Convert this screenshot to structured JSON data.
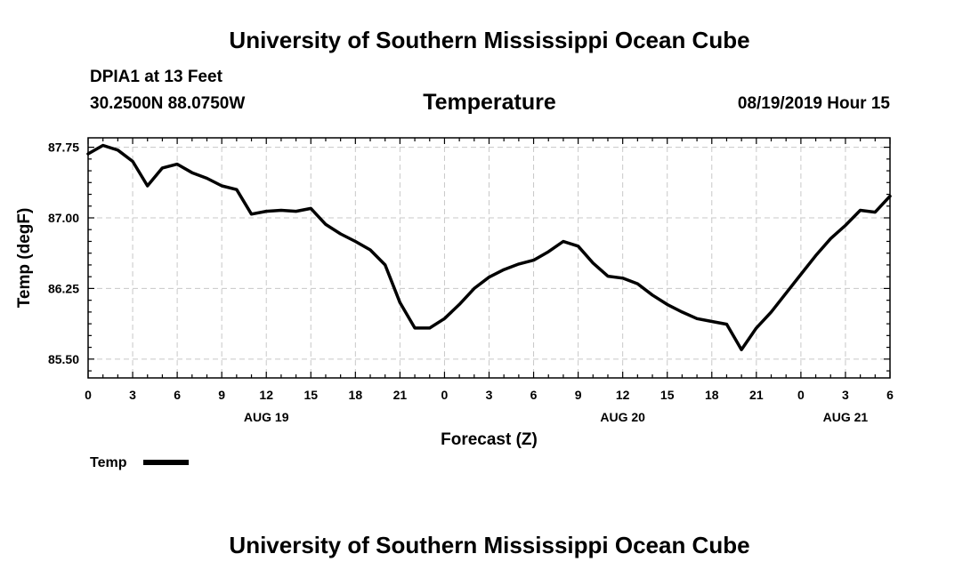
{
  "header": {
    "title_top": "University of Southern Mississippi Ocean Cube",
    "station": "DPIA1 at 13 Feet",
    "coordinates": "30.2500N 88.0750W",
    "parameter": "Temperature",
    "datetime": "08/19/2019 Hour 15",
    "title_bottom": "University of Southern Mississippi Ocean Cube"
  },
  "chart_data": {
    "type": "line",
    "title": "Temperature",
    "xlabel": "Forecast (Z)",
    "ylabel": "Temp (degF)",
    "xlim": [
      0,
      54
    ],
    "ylim": [
      85.3,
      87.85
    ],
    "yticks": [
      85.5,
      86.25,
      87.0,
      87.75
    ],
    "ytick_labels": [
      "85.50",
      "86.25",
      "87.00",
      "87.75"
    ],
    "xtick_labels": [
      "0",
      "3",
      "6",
      "9",
      "12",
      "15",
      "18",
      "21",
      "0",
      "3",
      "6",
      "9",
      "12",
      "15",
      "18",
      "21",
      "0",
      "3",
      "6"
    ],
    "date_labels": [
      {
        "x": 12,
        "label": "AUG 19"
      },
      {
        "x": 36,
        "label": "AUG 20"
      },
      {
        "x": 51,
        "label": "AUG 21"
      }
    ],
    "grid": true,
    "legend": [
      {
        "label": "Temp",
        "position": "bottom-left"
      }
    ],
    "series": [
      {
        "name": "Temp",
        "x": [
          0,
          1,
          2,
          3,
          4,
          5,
          6,
          7,
          8,
          9,
          10,
          11,
          12,
          13,
          14,
          15,
          16,
          17,
          18,
          19,
          20,
          21,
          22,
          23,
          24,
          25,
          26,
          27,
          28,
          29,
          30,
          31,
          32,
          33,
          34,
          35,
          36,
          37,
          38,
          39,
          40,
          41,
          42,
          43,
          44,
          45,
          46,
          47,
          48,
          49,
          50,
          51,
          52,
          53,
          54
        ],
        "values": [
          87.68,
          87.77,
          87.72,
          87.6,
          87.34,
          87.53,
          87.57,
          87.48,
          87.42,
          87.34,
          87.3,
          87.04,
          87.07,
          87.08,
          87.07,
          87.1,
          86.93,
          86.83,
          86.75,
          86.66,
          86.5,
          86.1,
          85.83,
          85.83,
          85.93,
          86.08,
          86.25,
          86.37,
          86.45,
          86.51,
          86.55,
          86.64,
          86.75,
          86.7,
          86.52,
          86.38,
          86.36,
          86.3,
          86.18,
          86.08,
          86.0,
          85.93,
          85.9,
          85.87,
          85.6,
          85.83,
          86.0,
          86.2,
          86.4,
          86.6,
          86.78,
          86.92,
          87.08,
          87.06,
          87.23
        ]
      }
    ]
  }
}
